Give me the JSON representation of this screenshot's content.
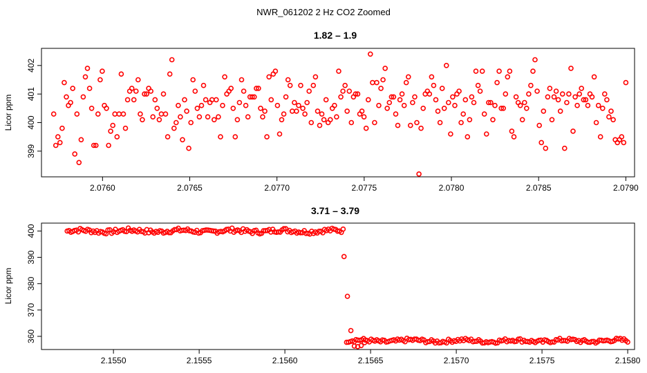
{
  "figure": {
    "title": "NWR_061202  2 Hz CO2 Zoomed"
  },
  "chart_data": [
    {
      "type": "scatter",
      "title": "1.82 – 1.9",
      "xlabel": "",
      "ylabel": "Licor ppm",
      "xlim": [
        2.07565,
        2.07905
      ],
      "ylim": [
        398.1,
        402.6
      ],
      "xticks": [
        2.076,
        2.0765,
        2.077,
        2.0775,
        2.078,
        2.0785,
        2.079
      ],
      "xtick_labels": [
        "2.0760",
        "2.0765",
        "2.0770",
        "2.0775",
        "2.0780",
        "2.0785",
        "2.0790"
      ],
      "yticks": [
        399,
        400,
        401,
        402
      ],
      "ytick_labels": [
        "399",
        "400",
        "401",
        "402"
      ],
      "marker_color": "#ff0000",
      "x_start": 2.07572,
      "x_end": 2.079,
      "y": [
        400.3,
        399.2,
        399.5,
        399.3,
        399.8,
        401.4,
        400.9,
        400.6,
        400.7,
        401.2,
        398.9,
        400.3,
        398.6,
        399.4,
        400.9,
        401.6,
        401.9,
        401.2,
        400.5,
        399.2,
        399.2,
        400.3,
        401.5,
        401.8,
        400.6,
        400.5,
        399.2,
        399.7,
        399.9,
        400.3,
        399.5,
        400.3,
        401.7,
        400.3,
        399.8,
        400.8,
        401.1,
        401.2,
        400.8,
        401.1,
        401.5,
        400.3,
        400.1,
        401.0,
        401.0,
        401.2,
        401.1,
        400.2,
        400.8,
        400.5,
        400.1,
        400.3,
        401.0,
        400.3,
        399.5,
        401.7,
        402.2,
        399.8,
        400.0,
        400.6,
        400.2,
        399.4,
        400.8,
        400.4,
        399.1,
        400.0,
        401.5,
        401.1,
        400.5,
        400.2,
        400.6,
        401.3,
        400.8,
        400.2,
        400.7,
        400.8,
        400.1,
        400.8,
        400.2,
        399.5,
        400.6,
        401.6,
        401.0,
        401.1,
        401.2,
        400.5,
        399.5,
        400.1,
        400.7,
        401.5,
        401.1,
        400.6,
        400.2,
        400.9,
        400.9,
        400.9,
        401.2,
        401.2,
        400.5,
        400.2,
        400.4,
        399.5,
        401.6,
        400.8,
        401.7,
        401.8,
        400.6,
        399.6,
        400.1,
        400.3,
        400.9,
        401.5,
        401.3,
        400.4,
        400.7,
        400.4,
        400.6,
        401.3,
        400.5,
        400.3,
        400.7,
        401.1,
        400.0,
        401.3,
        401.6,
        400.4,
        399.9,
        400.3,
        400.1,
        400.8,
        400.0,
        400.1,
        400.5,
        400.6,
        400.2,
        401.8,
        400.9,
        401.1,
        401.3,
        400.4,
        401.1,
        400.0,
        400.9,
        401.0,
        401.0,
        400.3,
        400.4,
        400.2,
        399.8,
        400.8,
        402.4,
        401.4,
        400.0,
        401.4,
        400.6,
        401.2,
        401.5,
        401.9,
        400.5,
        400.7,
        400.9,
        400.9,
        400.3,
        399.9,
        400.8,
        401.0,
        400.6,
        401.4,
        401.6,
        399.9,
        400.7,
        400.9,
        400.0,
        398.2,
        399.8,
        400.5,
        401.0,
        401.1,
        401.0,
        401.6,
        401.3,
        400.8,
        400.4,
        400.0,
        401.2,
        400.5,
        402.0,
        400.7,
        399.6,
        400.9,
        400.6,
        401.0,
        401.1,
        400.0,
        400.3,
        400.8,
        399.5,
        400.1,
        400.9,
        400.7,
        401.8,
        401.3,
        401.1,
        401.8,
        400.3,
        399.6,
        400.7,
        400.7,
        400.1,
        400.6,
        401.4,
        401.8,
        400.5,
        400.5,
        401.0,
        401.6,
        401.8,
        399.7,
        399.5,
        400.9,
        400.7,
        400.6,
        400.1,
        400.7,
        400.5,
        401.0,
        401.3,
        401.8,
        402.2,
        401.1,
        399.9,
        399.3,
        400.4,
        399.1,
        400.9,
        401.2,
        400.1,
        400.9,
        401.1,
        400.8,
        400.4,
        401.0,
        399.1,
        400.7,
        401.0,
        401.9,
        399.7,
        400.9,
        400.6,
        401.0,
        401.2,
        400.8,
        400.8,
        400.6,
        401.0,
        400.9,
        401.6,
        400.0,
        400.6,
        399.5,
        400.5,
        401.0,
        400.8,
        400.2,
        400.4,
        400.1,
        399.4,
        399.3,
        399.4,
        399.5,
        399.3,
        401.4
      ]
    },
    {
      "type": "scatter",
      "title": "3.71 – 3.79",
      "xlabel": "",
      "ylabel": "Licor ppm",
      "xlim": [
        2.15458,
        2.15804
      ],
      "ylim": [
        355.0,
        403.0
      ],
      "xticks": [
        2.155,
        2.1555,
        2.156,
        2.1565,
        2.157,
        2.1575,
        2.158
      ],
      "xtick_labels": [
        "2.1550",
        "2.1555",
        "2.1560",
        "2.1565",
        "2.1570",
        "2.1575",
        "2.1580"
      ],
      "yticks": [
        360,
        370,
        380,
        390,
        400
      ],
      "ytick_labels": [
        "360",
        "370",
        "380",
        "390",
        "400"
      ],
      "marker_color": "#ff0000",
      "segments": [
        {
          "x_start": 2.15473,
          "x_end": 2.15634,
          "count": 150,
          "base": 400.0,
          "spread": 1.6
        },
        {
          "x_start": 2.15636,
          "x_end": 2.158,
          "count": 150,
          "base": 358.3,
          "spread": 1.4
        }
      ],
      "points": [
        {
          "x": 2.156345,
          "y": 390.3
        },
        {
          "x": 2.156365,
          "y": 375.2
        },
        {
          "x": 2.156385,
          "y": 362.2
        },
        {
          "x": 2.156405,
          "y": 356.3
        },
        {
          "x": 2.156425,
          "y": 356.1
        },
        {
          "x": 2.156445,
          "y": 356.5
        },
        {
          "x": 2.156465,
          "y": 357.6
        }
      ]
    }
  ]
}
